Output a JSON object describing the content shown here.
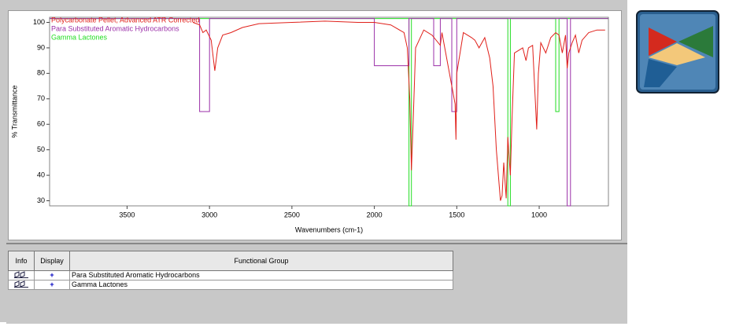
{
  "chart_data": {
    "type": "line",
    "ylabel": "% Transmittance",
    "xlabel": "Wavenumbers (cm-1)",
    "xlim": [
      3970,
      580
    ],
    "ylim": [
      28,
      102
    ],
    "xticks": [
      3500,
      3000,
      2500,
      2000,
      1500,
      1000
    ],
    "yticks": [
      30,
      40,
      50,
      60,
      70,
      80,
      90,
      100
    ],
    "grid": false,
    "series": [
      {
        "name": "Polycarbonate Pellet, Advanced ATR Corrected",
        "color": "#e0201a",
        "x": [
          3100,
          3060,
          3040,
          3020,
          2990,
          2968,
          2950,
          2920,
          2870,
          2800,
          2700,
          2500,
          2300,
          2100,
          2000,
          1900,
          1820,
          1800,
          1785,
          1775,
          1765,
          1750,
          1700,
          1650,
          1600,
          1590,
          1510,
          1505,
          1500,
          1460,
          1410,
          1390,
          1365,
          1330,
          1300,
          1280,
          1260,
          1235,
          1225,
          1215,
          1200,
          1190,
          1175,
          1165,
          1150,
          1100,
          1080,
          1065,
          1040,
          1015,
          1005,
          990,
          960,
          930,
          900,
          880,
          860,
          840,
          830,
          820,
          800,
          780,
          760,
          740,
          700,
          650,
          600
        ],
        "values": [
          100,
          99,
          96,
          97,
          93,
          81,
          90,
          95,
          96,
          98,
          99.5,
          100,
          100.5,
          100,
          100,
          99,
          96,
          90,
          70,
          42,
          60,
          90,
          97,
          95,
          91,
          96,
          68,
          54,
          80,
          96,
          94,
          93,
          90,
          94,
          86,
          75,
          50,
          30,
          32,
          45,
          31,
          55,
          40,
          62,
          88,
          90,
          85,
          90,
          91,
          58,
          80,
          92,
          88,
          94,
          96,
          95,
          88,
          95,
          82,
          88,
          92,
          95,
          88,
          93,
          96,
          97,
          97
        ]
      },
      {
        "name": "Para Substituted Aromatic Hydrocarbons",
        "color": "#9b2fa8",
        "x": [
          3970,
          3060,
          3060,
          3000,
          3000,
          2000,
          2000,
          1790,
          1790,
          1640,
          1640,
          1600,
          1600,
          1530,
          1530,
          1500,
          1500,
          830,
          830,
          810,
          810,
          580
        ],
        "values": [
          101.5,
          101.5,
          65,
          65,
          101.5,
          101.5,
          83,
          83,
          101.5,
          101.5,
          83,
          83,
          101.5,
          101.5,
          65,
          65,
          101.5,
          101.5,
          28,
          28,
          101.5,
          101.5
        ]
      },
      {
        "name": "Gamma Lactones",
        "color": "#22dd22",
        "x": [
          3970,
          1790,
          1790,
          1775,
          1775,
          1190,
          1190,
          1175,
          1175,
          900,
          900,
          880,
          880,
          580
        ],
        "values": [
          101.5,
          101.5,
          28,
          28,
          101.5,
          101.5,
          28,
          28,
          101.5,
          101.5,
          65,
          65,
          101.5,
          101.5
        ]
      }
    ]
  },
  "table": {
    "headers": [
      "Info",
      "Display",
      "Functional Group"
    ],
    "rows": [
      [
        "+",
        "Para Substituted Aromatic Hydrocarbons"
      ],
      [
        "+",
        "Gamma Lactones"
      ]
    ]
  }
}
